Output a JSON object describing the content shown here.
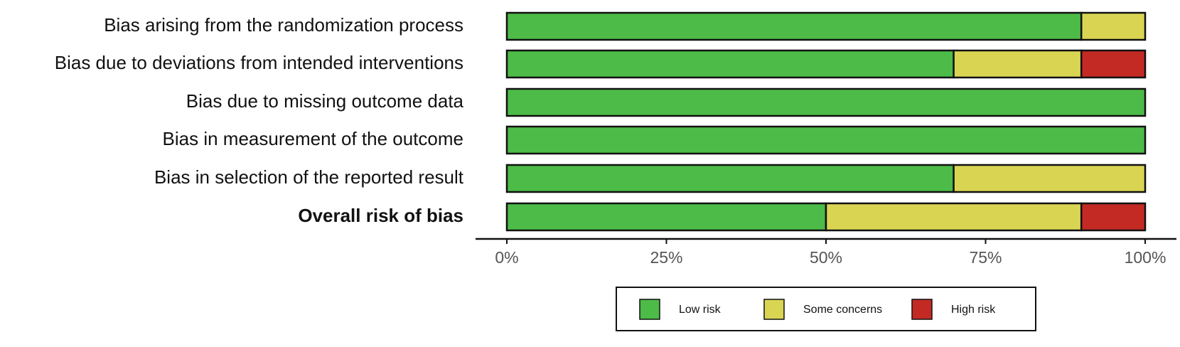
{
  "chart_data": {
    "type": "stacked-barh",
    "categories": [
      "Bias arising from the randomization process",
      "Bias due to deviations from intended interventions",
      "Bias due to missing outcome data",
      "Bias in measurement of the outcome",
      "Bias in selection of the reported result",
      "Overall risk of bias"
    ],
    "series": [
      {
        "name": "Low risk",
        "color": "#4cbb47",
        "values": [
          90,
          70,
          100,
          100,
          70,
          50
        ]
      },
      {
        "name": "Some concerns",
        "color": "#d9d553",
        "values": [
          10,
          20,
          0,
          0,
          30,
          40
        ]
      },
      {
        "name": "High risk",
        "color": "#c42a24",
        "values": [
          0,
          10,
          0,
          0,
          0,
          10
        ]
      }
    ],
    "xlim": [
      0,
      100
    ],
    "xticks": [
      {
        "value": 0,
        "label": "0%"
      },
      {
        "value": 25,
        "label": "25%"
      },
      {
        "value": 50,
        "label": "50%"
      },
      {
        "value": 75,
        "label": "75%"
      },
      {
        "value": 100,
        "label": "100%"
      }
    ],
    "legend": "bottom"
  }
}
